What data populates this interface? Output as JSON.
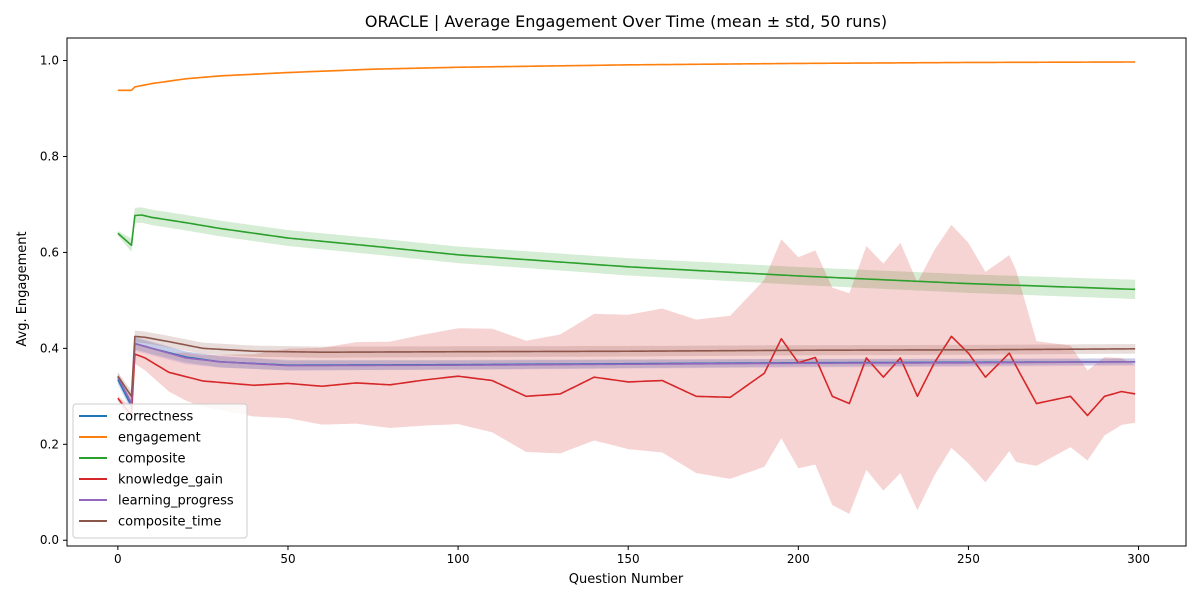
{
  "chart_data": {
    "type": "line",
    "title": "ORACLE | Average Engagement Over Time (mean ± std, 50 runs)",
    "xlabel": "Question Number",
    "ylabel": "Avg. Engagement",
    "xlim": [
      -14.95,
      313.95
    ],
    "ylim": [
      -0.012,
      1.047
    ],
    "x_ticks": [
      0,
      50,
      100,
      150,
      200,
      250,
      300
    ],
    "y_ticks": [
      0.0,
      0.2,
      0.4,
      0.6,
      0.8,
      1.0
    ],
    "x_tick_labels": [
      "0",
      "50",
      "100",
      "150",
      "200",
      "250",
      "300"
    ],
    "y_tick_labels": [
      "0.0",
      "0.2",
      "0.4",
      "0.6",
      "0.8",
      "1.0"
    ],
    "grid": false,
    "legend_position": "lower-left",
    "n_points": 300,
    "series": [
      {
        "name": "correctness",
        "color": "#1f77b4",
        "mean_keypoints": [
          [
            0,
            0.335
          ],
          [
            4,
            0.28
          ],
          [
            5,
            0.41
          ],
          [
            10,
            0.4
          ],
          [
            20,
            0.382
          ],
          [
            30,
            0.372
          ],
          [
            50,
            0.365
          ],
          [
            100,
            0.366
          ],
          [
            150,
            0.368
          ],
          [
            200,
            0.37
          ],
          [
            250,
            0.371
          ],
          [
            299,
            0.372
          ]
        ],
        "std_keypoints": [
          [
            0,
            0.01
          ],
          [
            5,
            0.012
          ],
          [
            299,
            0.006
          ]
        ]
      },
      {
        "name": "engagement",
        "color": "#ff7f0e",
        "mean_keypoints": [
          [
            0,
            0.938
          ],
          [
            4,
            0.938
          ],
          [
            5,
            0.945
          ],
          [
            10,
            0.952
          ],
          [
            20,
            0.962
          ],
          [
            30,
            0.968
          ],
          [
            50,
            0.975
          ],
          [
            75,
            0.982
          ],
          [
            100,
            0.986
          ],
          [
            150,
            0.991
          ],
          [
            200,
            0.994
          ],
          [
            250,
            0.996
          ],
          [
            299,
            0.997
          ]
        ],
        "std_keypoints": [
          [
            0,
            0.002
          ],
          [
            299,
            0.001
          ]
        ]
      },
      {
        "name": "composite",
        "color": "#2ca02c",
        "mean_keypoints": [
          [
            0,
            0.64
          ],
          [
            4,
            0.615
          ],
          [
            5,
            0.677
          ],
          [
            7,
            0.678
          ],
          [
            10,
            0.673
          ],
          [
            20,
            0.662
          ],
          [
            30,
            0.65
          ],
          [
            50,
            0.63
          ],
          [
            75,
            0.613
          ],
          [
            100,
            0.595
          ],
          [
            150,
            0.57
          ],
          [
            200,
            0.551
          ],
          [
            250,
            0.535
          ],
          [
            299,
            0.523
          ]
        ],
        "std_keypoints": [
          [
            0,
            0.005
          ],
          [
            5,
            0.016
          ],
          [
            299,
            0.02
          ]
        ]
      },
      {
        "name": "knowledge_gain",
        "color": "#d62728",
        "mean_keypoints": [
          [
            0,
            0.296
          ],
          [
            4,
            0.26
          ],
          [
            5,
            0.388
          ],
          [
            8,
            0.38
          ],
          [
            15,
            0.35
          ],
          [
            25,
            0.332
          ],
          [
            40,
            0.323
          ],
          [
            50,
            0.327
          ],
          [
            60,
            0.321
          ],
          [
            70,
            0.328
          ],
          [
            80,
            0.324
          ],
          [
            90,
            0.334
          ],
          [
            100,
            0.342
          ],
          [
            110,
            0.333
          ],
          [
            120,
            0.3
          ],
          [
            130,
            0.305
          ],
          [
            140,
            0.34
          ],
          [
            150,
            0.33
          ],
          [
            160,
            0.333
          ],
          [
            170,
            0.3
          ],
          [
            180,
            0.298
          ],
          [
            190,
            0.348
          ],
          [
            195,
            0.42
          ],
          [
            200,
            0.37
          ],
          [
            205,
            0.381
          ],
          [
            210,
            0.3
          ],
          [
            215,
            0.285
          ],
          [
            220,
            0.38
          ],
          [
            225,
            0.34
          ],
          [
            230,
            0.38
          ],
          [
            235,
            0.3
          ],
          [
            240,
            0.37
          ],
          [
            245,
            0.425
          ],
          [
            250,
            0.39
          ],
          [
            255,
            0.34
          ],
          [
            262,
            0.39
          ],
          [
            265,
            0.35
          ],
          [
            270,
            0.285
          ],
          [
            280,
            0.3
          ],
          [
            285,
            0.26
          ],
          [
            290,
            0.3
          ],
          [
            295,
            0.31
          ],
          [
            299,
            0.305
          ]
        ],
        "std_keypoints": [
          [
            0,
            0.005
          ],
          [
            5,
            0.02
          ],
          [
            20,
            0.05
          ],
          [
            60,
            0.08
          ],
          [
            100,
            0.1
          ],
          [
            150,
            0.14
          ],
          [
            180,
            0.17
          ],
          [
            200,
            0.22
          ],
          [
            230,
            0.24
          ],
          [
            250,
            0.23
          ],
          [
            264,
            0.2
          ],
          [
            270,
            0.13
          ],
          [
            299,
            0.06
          ]
        ]
      },
      {
        "name": "learning_progress",
        "color": "#9467bd",
        "mean_keypoints": [
          [
            0,
            0.34
          ],
          [
            4,
            0.285
          ],
          [
            5,
            0.41
          ],
          [
            10,
            0.4
          ],
          [
            20,
            0.38
          ],
          [
            30,
            0.372
          ],
          [
            50,
            0.364
          ],
          [
            100,
            0.365
          ],
          [
            150,
            0.367
          ],
          [
            200,
            0.369
          ],
          [
            250,
            0.37
          ],
          [
            299,
            0.372
          ]
        ],
        "std_keypoints": [
          [
            0,
            0.01
          ],
          [
            5,
            0.015
          ],
          [
            50,
            0.01
          ],
          [
            299,
            0.008
          ]
        ]
      },
      {
        "name": "composite_time",
        "color": "#8c564b",
        "mean_keypoints": [
          [
            0,
            0.342
          ],
          [
            4,
            0.3
          ],
          [
            5,
            0.425
          ],
          [
            8,
            0.423
          ],
          [
            15,
            0.414
          ],
          [
            25,
            0.4
          ],
          [
            40,
            0.394
          ],
          [
            60,
            0.392
          ],
          [
            100,
            0.393
          ],
          [
            150,
            0.394
          ],
          [
            200,
            0.396
          ],
          [
            250,
            0.397
          ],
          [
            299,
            0.399
          ]
        ],
        "std_keypoints": [
          [
            0,
            0.008
          ],
          [
            5,
            0.012
          ],
          [
            299,
            0.01
          ]
        ]
      }
    ]
  }
}
